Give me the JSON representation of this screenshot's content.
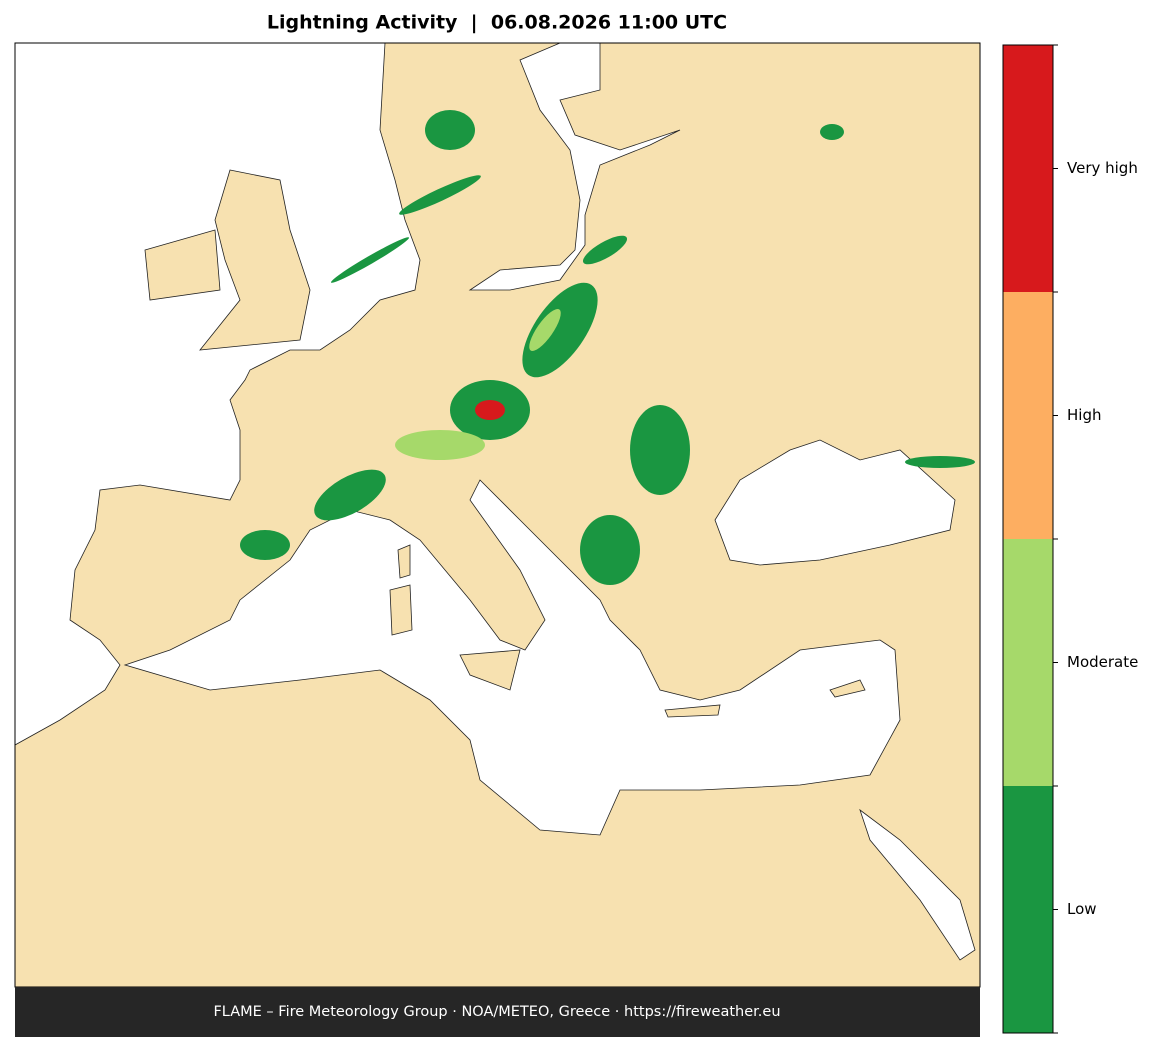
{
  "header": {
    "title": "Lightning Activity  |  06.08.2026 11:00 UTC"
  },
  "legend": {
    "items": [
      {
        "label": "Low",
        "color": "#1a9641"
      },
      {
        "label": "Moderate",
        "color": "#a6d96a"
      },
      {
        "label": "High",
        "color": "#fdae61"
      },
      {
        "label": "Very high",
        "color": "#d7191c"
      }
    ]
  },
  "footer": {
    "text": "FLAME – Fire Meteorology Group · NOA/METEO, Greece · https://fireweather.eu"
  }
}
